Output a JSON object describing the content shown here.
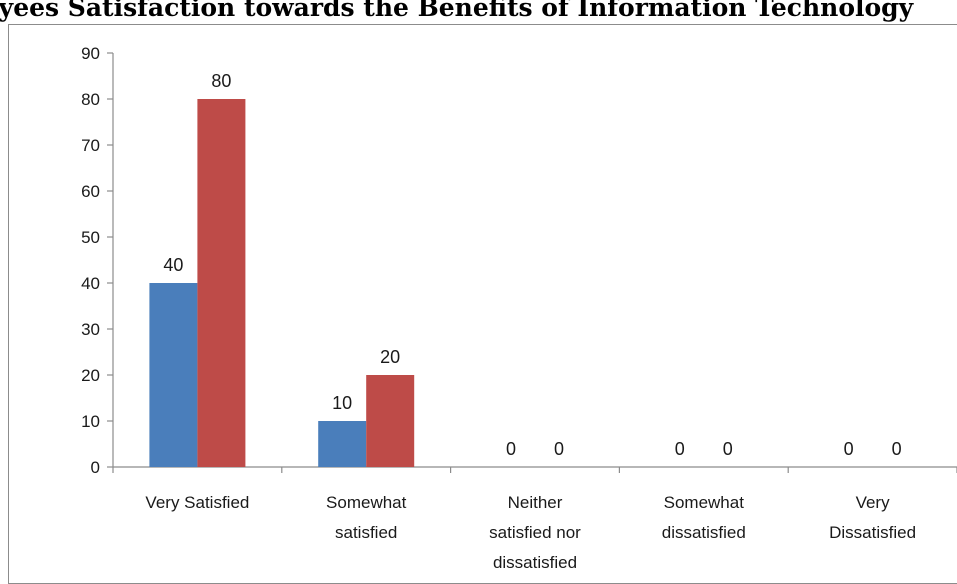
{
  "title": "oyees Satisfaction towards the Benefits of Information Technology",
  "chart_data": {
    "type": "bar",
    "categories": [
      [
        "Very Satisfied"
      ],
      [
        "Somewhat",
        "satisfied"
      ],
      [
        "Neither",
        "satisfied nor",
        "dissatisfied"
      ],
      [
        "Somewhat",
        "dissatisfied"
      ],
      [
        "Very",
        "Dissatisfied"
      ]
    ],
    "series": [
      {
        "values": [
          40,
          10,
          0,
          0,
          0
        ],
        "color": "#4a7ebb"
      },
      {
        "values": [
          80,
          20,
          0,
          0,
          0
        ],
        "color": "#be4b48"
      }
    ],
    "ylim": [
      0,
      90
    ],
    "yticks": [
      0,
      10,
      20,
      30,
      40,
      50,
      60,
      70,
      80,
      90
    ],
    "data_labels": true,
    "grid": false,
    "legend": "none"
  }
}
